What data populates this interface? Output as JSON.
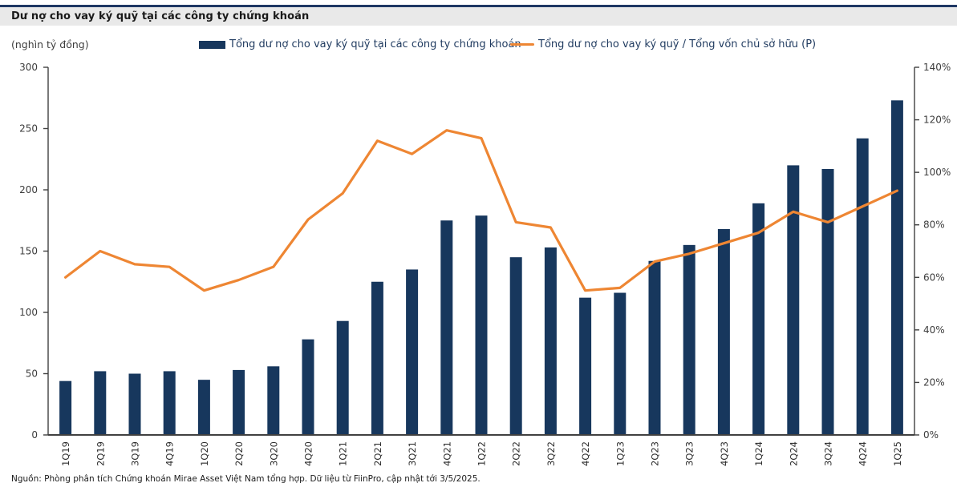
{
  "header": {
    "title": "Dư nợ cho vay ký quỹ tại các công ty chứng khoán"
  },
  "footer": {
    "source": "Nguồn: Phòng phân tích Chứng khoán Mirae Asset Việt Nam tổng hợp. Dữ liệu từ FiinPro, cập nhật tới 3/5/2025."
  },
  "colors": {
    "bar": "#17375d",
    "line": "#ee8633",
    "band_bg": "#e9e9e9",
    "band_rule": "#1f3864",
    "axis": "#404040",
    "tick_text": "#3d3d3d",
    "xlabel_text": "#2e2e2e"
  },
  "chart_data": {
    "type": "bar",
    "subtype": "bar+line-dual-axis",
    "title": "Dư nợ cho vay ký quỹ tại các công ty chứng khoán",
    "unit_left": "(nghìn tỷ đồng)",
    "legend_position": "top",
    "grid": false,
    "categories": [
      "1Q19",
      "2Q19",
      "3Q19",
      "4Q19",
      "1Q20",
      "2Q20",
      "3Q20",
      "4Q20",
      "1Q21",
      "2Q21",
      "3Q21",
      "4Q21",
      "1Q22",
      "2Q22",
      "3Q22",
      "4Q22",
      "1Q23",
      "2Q23",
      "3Q23",
      "4Q23",
      "1Q24",
      "2Q24",
      "3Q24",
      "4Q24",
      "1Q25"
    ],
    "series": [
      {
        "name": "Tổng dư nợ cho vay ký quỹ tại các công ty chứng khoán",
        "type": "bar",
        "axis": "left",
        "color": "#17375d",
        "values": [
          44,
          52,
          50,
          52,
          45,
          53,
          56,
          78,
          93,
          125,
          135,
          175,
          179,
          145,
          153,
          112,
          116,
          142,
          155,
          168,
          189,
          220,
          217,
          242,
          273
        ]
      },
      {
        "name": "Tổng dư nợ cho vay ký quỹ / Tổng vốn chủ sở hữu (P)",
        "type": "line",
        "axis": "right",
        "color": "#ee8633",
        "values_pct": [
          60,
          70,
          65,
          64,
          55,
          59,
          64,
          82,
          92,
          112,
          107,
          116,
          113,
          81,
          79,
          55,
          56,
          66,
          69,
          73,
          77,
          85,
          81,
          87,
          93
        ]
      }
    ],
    "y_left": {
      "min": 0,
      "max": 300,
      "step": 50,
      "ticks": [
        "0",
        "50",
        "100",
        "150",
        "200",
        "250",
        "300"
      ]
    },
    "y_right": {
      "min": 0,
      "max": 140,
      "step": 20,
      "ticks": [
        "0%",
        "20%",
        "40%",
        "60%",
        "80%",
        "100%",
        "120%",
        "140%"
      ]
    }
  }
}
